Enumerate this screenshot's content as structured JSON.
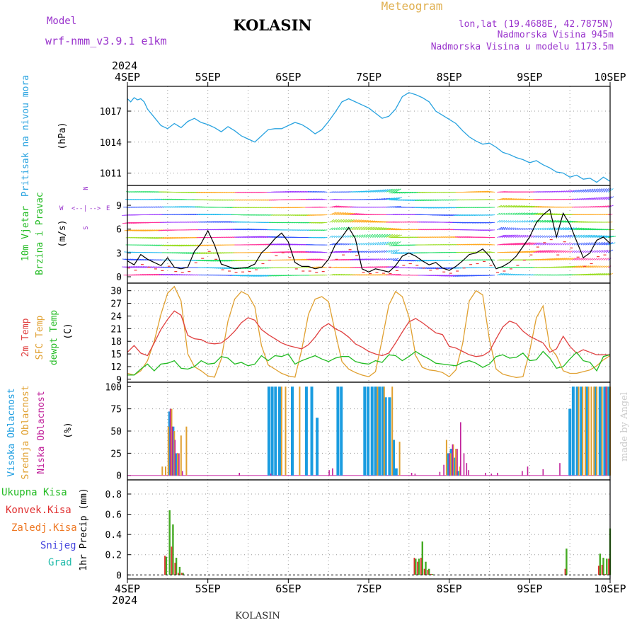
{
  "header": {
    "model_label": "Model",
    "model_name": "wrf-nmm_v3.9.1 e1km",
    "station": "KOLASIN",
    "meteogram": "Meteogram",
    "lonlat": "lon,lat (19.4688E, 42.7875N)",
    "elev": "Nadmorska Visina 945m",
    "elev_model": "Nadmorska Visina u modelu 1173.5m",
    "footer_station": "KOLASIN",
    "signature": "made by Angel",
    "year": "2024"
  },
  "colors": {
    "pressure": "#29a3e0",
    "wind": "#22bb22",
    "temp2m": "#e04040",
    "sfc": "#e0a030",
    "dew": "#22bb22",
    "high": "#1a9ce0",
    "mid": "#e0a030",
    "low": "#c0209a",
    "total": "#44aa22",
    "konv": "#e03030",
    "zaled": "#ee7722",
    "snijeg": "#4444dd",
    "grad": "#22bbaa",
    "gust": "#ee3333",
    "model": "#9933cc"
  },
  "x_axis": {
    "ticks": [
      "4SEP",
      "5SEP",
      "6SEP",
      "7SEP",
      "8SEP",
      "9SEP",
      "10SEP"
    ],
    "range_hours": [
      0,
      144
    ]
  },
  "panels": {
    "pressure": {
      "l1": "Pritisak na nivou mora",
      "unit": "(hPa)",
      "ticks": [
        "1011",
        "1014",
        "1017"
      ]
    },
    "wind": {
      "l1": "10m Vjetar",
      "l2": "Brzina i Pravac",
      "unit": "(m/s)",
      "ticks": [
        "0",
        "3",
        "6",
        "9"
      ],
      "compass": {
        "w": "W",
        "e": "E",
        "n": "N",
        "s": "S",
        "wleft": "<--",
        "eright": "-->",
        "vert": "|"
      }
    },
    "temp": {
      "l1": "2m Temp",
      "l2": "SFC Temp",
      "l3": "dewpt Temp",
      "unit": "(C)",
      "ticks": [
        "9",
        "12",
        "15",
        "18",
        "21",
        "24",
        "27",
        "30"
      ]
    },
    "cloud": {
      "l1": "Visoka Oblacnost",
      "l2": "Srednja Oblacnost",
      "l3": "Niska Oblacnost",
      "unit": "(%)",
      "ticks": [
        "0",
        "25",
        "50",
        "75",
        "100"
      ]
    },
    "precip": {
      "l1": "Ukupna Kisa",
      "l2": "Konvek.Kisa",
      "l3": "Zaledj.Kisa",
      "l4": "Snijeg",
      "l5": "Grad",
      "unit": "1hr Precip (mm)",
      "ticks": [
        "0",
        "0.2",
        "0.4",
        "0.6",
        "0.8"
      ]
    }
  },
  "chart_data": [
    {
      "type": "line",
      "name": "pressure",
      "ylim": [
        1009.8,
        1019.4
      ],
      "x": [
        0,
        1,
        2,
        3,
        4,
        5,
        6,
        8,
        10,
        12,
        14,
        16,
        18,
        20,
        22,
        24,
        26,
        28,
        30,
        32,
        34,
        36,
        38,
        40,
        42,
        44,
        46,
        48,
        50,
        52,
        54,
        56,
        58,
        60,
        62,
        64,
        66,
        68,
        70,
        72,
        74,
        76,
        78,
        80,
        82,
        84,
        86,
        88,
        90,
        92,
        94,
        96,
        98,
        100,
        102,
        104,
        106,
        108,
        110,
        112,
        114,
        116,
        118,
        120,
        122,
        124,
        126,
        128,
        130,
        132,
        134,
        136,
        138,
        140,
        142,
        144
      ],
      "y": [
        1018.2,
        1017.9,
        1018.3,
        1018.1,
        1018.2,
        1017.9,
        1017.2,
        1016.4,
        1015.6,
        1015.3,
        1015.8,
        1015.4,
        1016.0,
        1016.3,
        1015.9,
        1015.7,
        1015.4,
        1015.0,
        1015.5,
        1015.1,
        1014.6,
        1014.3,
        1014.0,
        1014.6,
        1015.2,
        1015.3,
        1015.3,
        1015.6,
        1015.9,
        1015.7,
        1015.3,
        1014.8,
        1015.2,
        1016.0,
        1016.9,
        1017.9,
        1018.2,
        1017.9,
        1017.6,
        1017.3,
        1016.8,
        1016.3,
        1016.5,
        1017.2,
        1018.4,
        1018.8,
        1018.6,
        1018.3,
        1017.9,
        1017.0,
        1016.6,
        1016.2,
        1015.8,
        1015.1,
        1014.5,
        1014.1,
        1013.8,
        1013.9,
        1013.5,
        1013.0,
        1012.8,
        1012.5,
        1012.3,
        1012.0,
        1012.2,
        1011.8,
        1011.5,
        1011.1,
        1011.0,
        1010.6,
        1010.8,
        1010.4,
        1010.5,
        1010.1,
        1010.6,
        1010.2
      ]
    },
    {
      "type": "line",
      "name": "wind_speed",
      "ylim": [
        -0.8,
        11.5
      ],
      "x": [
        0,
        2,
        4,
        6,
        8,
        10,
        12,
        14,
        16,
        18,
        20,
        22,
        24,
        26,
        28,
        30,
        32,
        34,
        36,
        38,
        40,
        42,
        44,
        46,
        48,
        50,
        52,
        54,
        56,
        58,
        60,
        62,
        64,
        66,
        68,
        70,
        72,
        74,
        76,
        78,
        80,
        82,
        84,
        86,
        88,
        90,
        92,
        94,
        96,
        98,
        100,
        102,
        104,
        106,
        108,
        110,
        112,
        114,
        116,
        118,
        120,
        122,
        124,
        126,
        128,
        130,
        132,
        134,
        136,
        138,
        140,
        142,
        144
      ],
      "y": [
        2.0,
        1.5,
        2.8,
        2.2,
        1.8,
        1.4,
        2.4,
        1.2,
        1.0,
        1.2,
        3.2,
        4.2,
        5.8,
        4.0,
        1.6,
        1.3,
        1.0,
        1.1,
        1.2,
        1.6,
        3.0,
        3.8,
        4.8,
        5.5,
        4.4,
        1.8,
        1.3,
        1.3,
        1.0,
        1.2,
        2.2,
        4.0,
        5.0,
        6.2,
        4.8,
        1.0,
        0.6,
        1.0,
        0.8,
        0.6,
        1.4,
        2.6,
        3.0,
        2.6,
        2.0,
        1.5,
        1.8,
        1.1,
        0.8,
        1.3,
        2.0,
        2.8,
        3.0,
        3.5,
        2.6,
        1.0,
        1.3,
        1.8,
        2.6,
        3.8,
        5.0,
        6.8,
        7.8,
        8.5,
        5.0,
        8.0,
        6.6,
        4.5,
        2.4,
        3.0,
        4.6,
        5.0,
        4.2
      ]
    },
    {
      "type": "line",
      "name": "temp_2m",
      "ylim": [
        8.3,
        31.8
      ],
      "x": [
        0,
        2,
        4,
        6,
        8,
        10,
        12,
        14,
        16,
        18,
        20,
        22,
        24,
        26,
        28,
        30,
        32,
        34,
        36,
        38,
        40,
        42,
        44,
        46,
        48,
        50,
        52,
        54,
        56,
        58,
        60,
        62,
        64,
        66,
        68,
        70,
        72,
        74,
        76,
        78,
        80,
        82,
        84,
        86,
        88,
        90,
        92,
        94,
        96,
        98,
        100,
        102,
        104,
        106,
        108,
        110,
        112,
        114,
        116,
        118,
        120,
        122,
        124,
        126,
        128,
        130,
        132,
        134,
        136,
        138,
        140,
        142,
        144
      ],
      "y": [
        15.4,
        17.0,
        15.2,
        14.6,
        17.6,
        20.8,
        23.2,
        25.2,
        24.2,
        19.4,
        18.6,
        18.4,
        17.6,
        17.4,
        17.6,
        18.8,
        20.4,
        22.4,
        23.6,
        23.0,
        20.8,
        19.6,
        18.6,
        17.6,
        17.0,
        16.6,
        16.2,
        17.2,
        19.0,
        21.2,
        22.2,
        21.0,
        20.2,
        19.0,
        17.4,
        16.6,
        15.6,
        15.0,
        14.6,
        15.2,
        17.6,
        20.2,
        22.6,
        23.4,
        22.4,
        21.2,
        20.0,
        19.6,
        16.8,
        16.4,
        15.6,
        14.8,
        14.4,
        14.6,
        15.6,
        18.6,
        21.4,
        22.8,
        22.2,
        20.4,
        19.2,
        18.4,
        17.6,
        15.4,
        16.2,
        19.2,
        16.8,
        15.2,
        16.0,
        15.4,
        14.8,
        14.8,
        14.8
      ]
    },
    {
      "type": "line",
      "name": "temp_sfc",
      "ylim": [
        8.3,
        31.8
      ],
      "x": [
        0,
        2,
        4,
        6,
        8,
        10,
        12,
        14,
        16,
        18,
        20,
        22,
        24,
        26,
        28,
        30,
        32,
        34,
        36,
        38,
        40,
        42,
        44,
        46,
        48,
        50,
        52,
        54,
        56,
        58,
        60,
        62,
        64,
        66,
        68,
        70,
        72,
        74,
        76,
        78,
        80,
        82,
        84,
        86,
        88,
        90,
        92,
        94,
        96,
        98,
        100,
        102,
        104,
        106,
        108,
        110,
        112,
        114,
        116,
        118,
        120,
        122,
        124,
        126,
        128,
        130,
        132,
        134,
        136,
        138,
        140,
        142,
        144
      ],
      "y": [
        10.4,
        10.0,
        11.0,
        13.4,
        18.0,
        24.4,
        29.4,
        31.0,
        27.6,
        15.0,
        12.0,
        11.0,
        9.8,
        9.5,
        13.8,
        22.8,
        28.0,
        29.8,
        29.0,
        26.2,
        17.0,
        12.4,
        11.4,
        10.4,
        9.8,
        9.5,
        16.0,
        24.4,
        28.0,
        28.6,
        27.4,
        20.2,
        13.2,
        11.4,
        10.6,
        10.0,
        9.6,
        10.8,
        18.4,
        26.6,
        29.8,
        28.6,
        23.8,
        14.6,
        11.8,
        11.2,
        11.0,
        10.6,
        9.6,
        11.2,
        17.4,
        27.6,
        30.0,
        29.0,
        18.4,
        11.4,
        10.2,
        9.8,
        9.4,
        9.6,
        15.6,
        23.6,
        26.4,
        16.6,
        14.6,
        11.0,
        10.4,
        10.4,
        10.8,
        11.2,
        12.2,
        13.6,
        14.6
      ]
    },
    {
      "type": "line",
      "name": "temp_dew",
      "ylim": [
        8.3,
        31.8
      ],
      "x": [
        0,
        2,
        4,
        6,
        8,
        10,
        12,
        14,
        16,
        18,
        20,
        22,
        24,
        26,
        28,
        30,
        32,
        34,
        36,
        38,
        40,
        42,
        44,
        46,
        48,
        50,
        52,
        54,
        56,
        58,
        60,
        62,
        64,
        66,
        68,
        70,
        72,
        74,
        76,
        78,
        80,
        82,
        84,
        86,
        88,
        90,
        92,
        94,
        96,
        98,
        100,
        102,
        104,
        106,
        108,
        110,
        112,
        114,
        116,
        118,
        120,
        122,
        124,
        126,
        128,
        130,
        132,
        134,
        136,
        138,
        140,
        142,
        144
      ],
      "y": [
        10.0,
        10.0,
        11.4,
        12.6,
        11.0,
        12.6,
        12.8,
        13.4,
        11.6,
        11.4,
        12.0,
        13.4,
        12.6,
        12.8,
        14.4,
        14.0,
        12.6,
        13.0,
        12.2,
        12.6,
        14.6,
        13.4,
        14.6,
        14.4,
        15.0,
        12.6,
        13.4,
        14.0,
        14.6,
        13.8,
        13.2,
        14.0,
        14.4,
        14.4,
        13.2,
        12.8,
        12.6,
        13.4,
        13.0,
        14.8,
        14.6,
        13.4,
        14.4,
        15.6,
        14.6,
        13.8,
        12.8,
        12.6,
        12.4,
        12.2,
        13.0,
        13.4,
        12.8,
        11.8,
        12.6,
        14.4,
        14.8,
        14.0,
        14.2,
        15.2,
        13.4,
        13.6,
        15.6,
        14.0,
        11.6,
        12.0,
        13.8,
        15.4,
        13.4,
        13.0,
        11.0,
        14.4,
        14.8
      ]
    },
    {
      "type": "bar",
      "name": "cloud_high",
      "ylim": [
        -5,
        105
      ],
      "x": [
        12.6,
        13.6,
        14.6,
        42.2,
        43.2,
        44.2,
        45.4,
        49.2,
        53.4,
        55.0,
        56.6,
        62.8,
        63.8,
        70.8,
        71.8,
        73.0,
        74.0,
        75.2,
        76.2,
        77.0,
        78.2,
        79.4,
        80.2,
        95.6,
        96.6,
        97.6,
        98.6,
        132.0,
        133.0,
        134.2,
        135.4,
        137.0,
        139.6,
        141.0,
        142.4,
        143.4
      ],
      "y": [
        72,
        55,
        25,
        100,
        100,
        100,
        100,
        100,
        100,
        100,
        65,
        100,
        100,
        100,
        100,
        100,
        100,
        100,
        100,
        88,
        88,
        40,
        8,
        25,
        30,
        20,
        5,
        75,
        100,
        100,
        100,
        100,
        100,
        100,
        100,
        100
      ]
    },
    {
      "type": "bar",
      "name": "cloud_mid",
      "ylim": [
        -5,
        105
      ],
      "x": [
        10.4,
        11.4,
        12.2,
        13.2,
        14.0,
        15.0,
        16.0,
        17.6,
        46.0,
        47.2,
        51.4,
        74.6,
        76.6,
        79.0,
        81.2,
        95.2,
        96.4,
        97.2,
        98.0,
        99.2,
        134.6,
        135.8,
        136.6,
        137.6,
        138.4,
        139.2,
        140.0,
        141.6,
        143.0,
        144.0
      ],
      "y": [
        10,
        10,
        55,
        75,
        50,
        25,
        45,
        55,
        100,
        100,
        100,
        100,
        100,
        100,
        38,
        40,
        25,
        35,
        30,
        10,
        100,
        100,
        100,
        100,
        100,
        100,
        100,
        100,
        100,
        100
      ]
    },
    {
      "type": "bar",
      "name": "cloud_low",
      "ylim": [
        -5,
        105
      ],
      "x": [
        12.8,
        13.4,
        14.2,
        15.4,
        16.4,
        33.4,
        42.8,
        60.2,
        61.2,
        84.8,
        85.8,
        93.2,
        94.4,
        96.0,
        97.0,
        98.4,
        99.4,
        100.4,
        101.2,
        101.8,
        106.8,
        108.6,
        110.4,
        117.8,
        119.4,
        124.0,
        129.0,
        142.8
      ],
      "y": [
        75,
        55,
        40,
        25,
        5,
        3,
        2,
        6,
        8,
        3,
        2,
        4,
        12,
        25,
        35,
        30,
        60,
        25,
        14,
        6,
        3,
        2,
        3,
        5,
        10,
        7,
        14,
        100
      ]
    },
    {
      "type": "bar",
      "name": "precip_total",
      "ylim": [
        -0.04,
        0.94
      ],
      "x": [
        11.6,
        12.6,
        13.6,
        14.6,
        15.6,
        16.6,
        86.0,
        87.0,
        88.0,
        89.0,
        90.0,
        91.0,
        131.0,
        141.0,
        142.0,
        143.0,
        144.0
      ],
      "y": [
        0.18,
        0.64,
        0.5,
        0.17,
        0.08,
        0.02,
        0.16,
        0.16,
        0.33,
        0.13,
        0.06,
        0.01,
        0.26,
        0.21,
        0.17,
        0.16,
        0.46
      ]
    },
    {
      "type": "bar",
      "name": "precip_konv",
      "ylim": [
        -0.04,
        0.94
      ],
      "x": [
        11.2,
        12.2,
        13.2,
        14.2,
        15.2,
        16.2,
        85.6,
        86.6,
        87.6,
        88.6,
        89.6,
        90.6,
        130.6,
        140.6,
        141.6,
        142.6,
        143.6
      ],
      "y": [
        0.19,
        0.0,
        0.28,
        0.12,
        0.02,
        0.02,
        0.17,
        0.13,
        0.17,
        0.06,
        0.05,
        0.01,
        0.06,
        0.09,
        0.1,
        0.01,
        0.16
      ]
    }
  ]
}
